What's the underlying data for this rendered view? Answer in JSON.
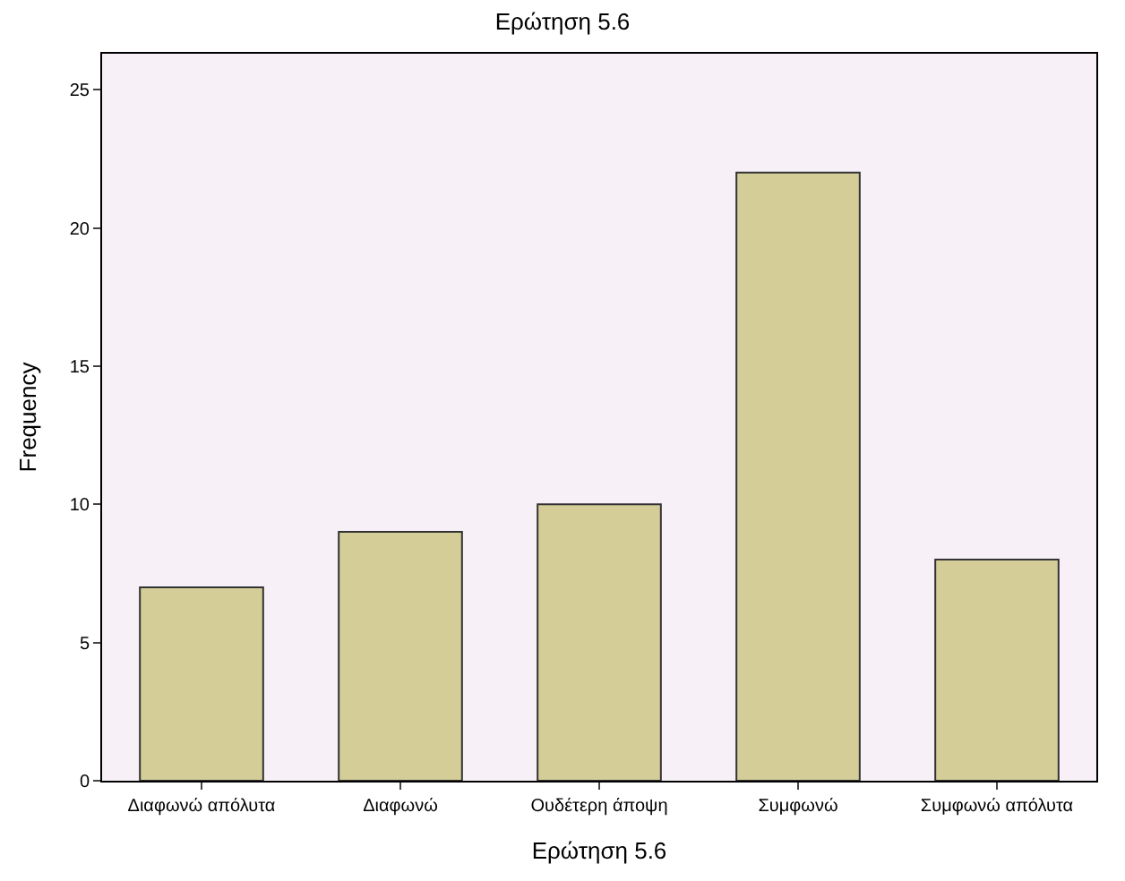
{
  "chart_data": {
    "type": "bar",
    "title": "Ερώτηση 5.6",
    "xlabel": "Ερώτηση 5.6",
    "ylabel": "Frequency",
    "categories": [
      "Διαφωνώ απόλυτα",
      "Διαφωνώ",
      "Ουδέτερη άποψη",
      "Συμφωνώ",
      "Συμφωνώ απόλυτα"
    ],
    "values": [
      7,
      9,
      10,
      22,
      8
    ],
    "color": "#d4cd98",
    "ylim": [
      0,
      26.3
    ],
    "yticks": [
      0,
      5,
      10,
      15,
      20,
      25
    ],
    "grid": false,
    "legend": false
  }
}
